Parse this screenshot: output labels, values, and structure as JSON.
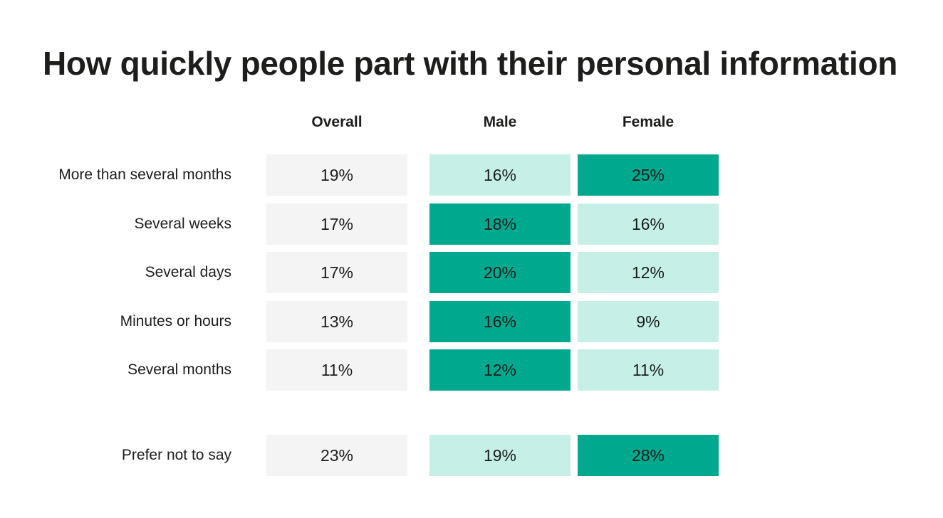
{
  "chart_data": {
    "type": "table",
    "title": "How quickly people part with their personal information",
    "columns": [
      "Overall",
      "Male",
      "Female"
    ],
    "rows": [
      {
        "label": "More than several months",
        "values": [
          "19%",
          "16%",
          "25%"
        ],
        "highlight": "Female"
      },
      {
        "label": "Several weeks",
        "values": [
          "17%",
          "18%",
          "16%"
        ],
        "highlight": "Male"
      },
      {
        "label": "Several days",
        "values": [
          "17%",
          "20%",
          "12%"
        ],
        "highlight": "Male"
      },
      {
        "label": "Minutes or hours",
        "values": [
          "13%",
          "16%",
          "9%"
        ],
        "highlight": "Male"
      },
      {
        "label": "Several months",
        "values": [
          "11%",
          "12%",
          "11%"
        ],
        "highlight": "Male"
      },
      {
        "label": "Prefer not to say",
        "values": [
          "23%",
          "19%",
          "28%"
        ],
        "highlight": "Female"
      }
    ],
    "colors": {
      "overall": "#f4f4f4",
      "higher_gender": "#00a88e",
      "lower_gender": "#c6f0e7"
    }
  }
}
